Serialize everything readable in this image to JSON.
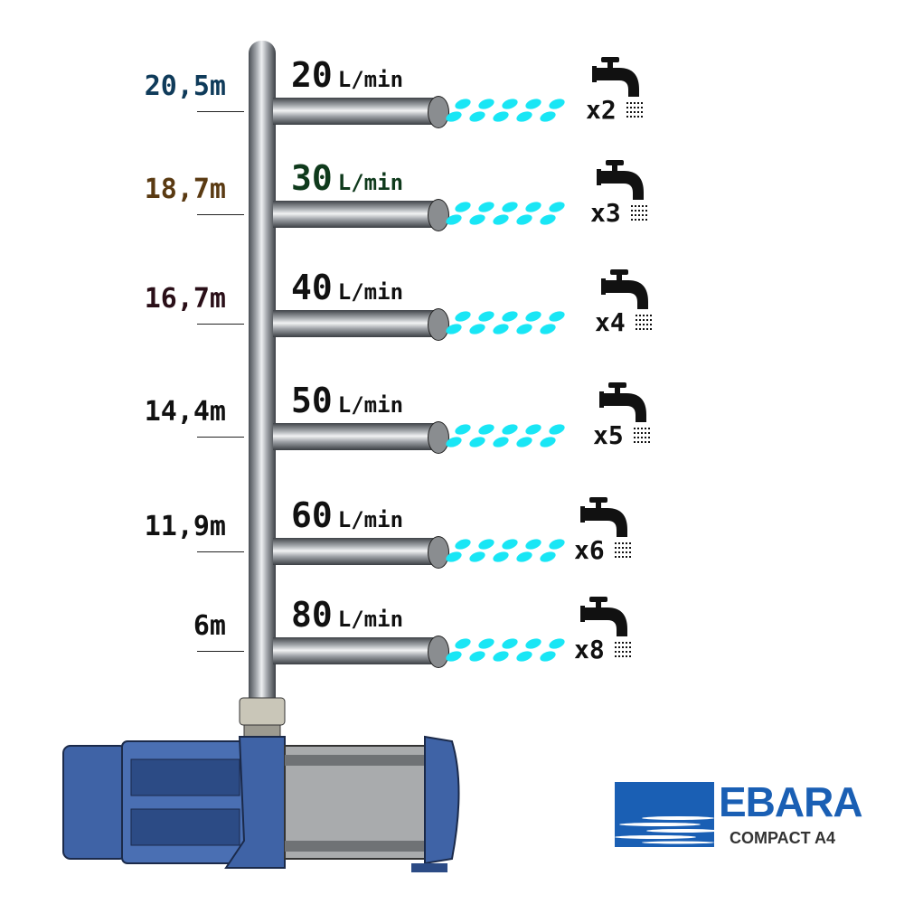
{
  "rows": [
    {
      "height": "20,5m",
      "height_color": "#0f3b5a",
      "flow_value": "20",
      "flow_unit": "L/min",
      "flow_color": "#111111",
      "multiplier": "x2"
    },
    {
      "height": "18,7m",
      "height_color": "#5a3a12",
      "flow_value": "30",
      "flow_unit": "L/min",
      "flow_color": "#0f3a1c",
      "multiplier": "x3"
    },
    {
      "height": "16,7m",
      "height_color": "#2a0f18",
      "flow_value": "40",
      "flow_unit": "L/min",
      "flow_color": "#111111",
      "multiplier": "x4"
    },
    {
      "height": "14,4m",
      "height_color": "#111111",
      "flow_value": "50",
      "flow_unit": "L/min",
      "flow_color": "#111111",
      "multiplier": "x5"
    },
    {
      "height": "11,9m",
      "height_color": "#111111",
      "flow_value": "60",
      "flow_unit": "L/min",
      "flow_color": "#111111",
      "multiplier": "x6"
    },
    {
      "height": "6m",
      "height_color": "#111111",
      "flow_value": "80",
      "flow_unit": "L/min",
      "flow_color": "#111111",
      "multiplier": "x8"
    }
  ],
  "logo": {
    "brand": "EBARA",
    "model": "COMPACT A4",
    "color": "#1a5fb4"
  },
  "colors": {
    "water": "#19e6f5",
    "pump": "#3f63a6"
  },
  "icons": [
    "faucet-icon",
    "water-drop-icon",
    "pump-illustration"
  ]
}
